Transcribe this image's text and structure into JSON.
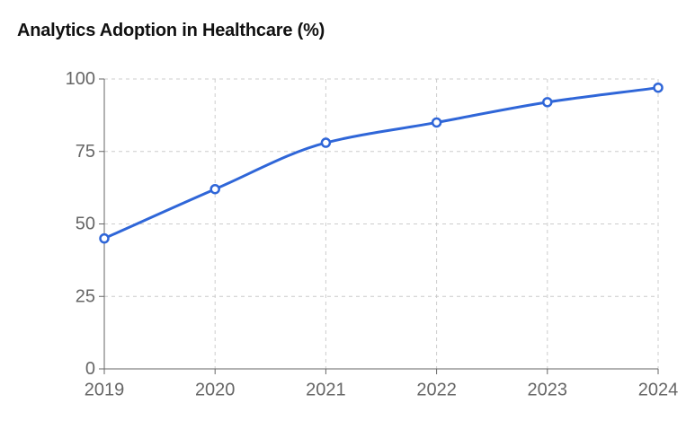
{
  "chart_data": {
    "type": "line",
    "title": "Analytics Adoption in Healthcare (%)",
    "xlabel": "",
    "ylabel": "",
    "x": [
      "2019",
      "2020",
      "2021",
      "2022",
      "2023",
      "2024"
    ],
    "yticks": [
      0,
      25,
      50,
      75,
      100
    ],
    "ylim": [
      0,
      100
    ],
    "grid": true,
    "legend": "none",
    "series": [
      {
        "values": [
          45,
          62,
          78,
          85,
          92,
          97
        ],
        "color": "#2f66d8",
        "marker": "circle-open",
        "smooth": true
      }
    ]
  }
}
